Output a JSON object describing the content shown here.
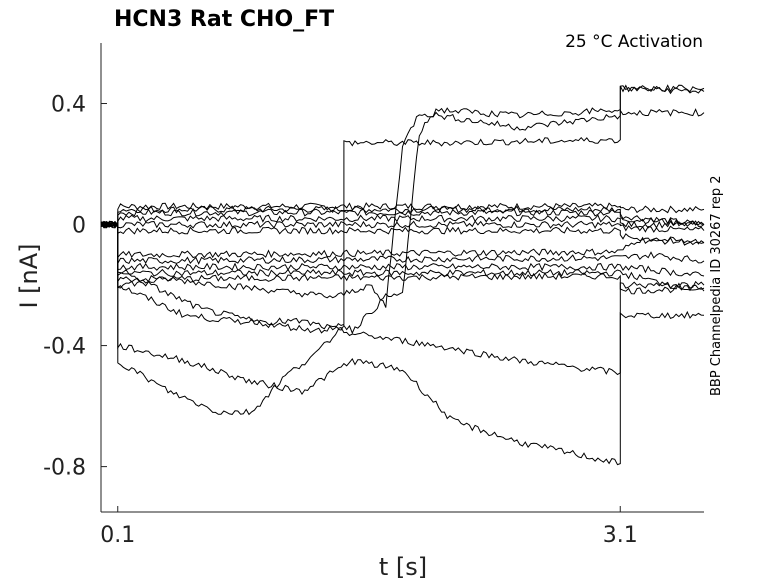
{
  "chart_data": {
    "type": "line",
    "title": "HCN3  Rat  CHO_FT",
    "annotation": "25 °C  Activation",
    "side_note": "BBP Channelpedia ID 30267 rep 2",
    "xlabel": "t [s]",
    "ylabel": "I [nA]",
    "xlim": [
      0.0,
      3.6
    ],
    "ylim": [
      -0.95,
      0.6
    ],
    "xticks": [
      {
        "value": 0.1,
        "label": "0.1"
      },
      {
        "value": 3.1,
        "label": "3.1"
      }
    ],
    "yticks": [
      {
        "value": 0.4,
        "label": "0.4"
      },
      {
        "value": 0.0,
        "label": "0"
      },
      {
        "value": -0.4,
        "label": "-0.4"
      },
      {
        "value": -0.8,
        "label": "-0.8"
      }
    ],
    "grid": false,
    "line_color": "#000000",
    "series": [
      {
        "values": [
          [
            0.0,
            0
          ],
          [
            0.1,
            0
          ],
          [
            0.1,
            0.06
          ],
          [
            3.1,
            0.06
          ],
          [
            3.1,
            0.05
          ],
          [
            3.6,
            0.05
          ]
        ]
      },
      {
        "values": [
          [
            0.0,
            0
          ],
          [
            0.1,
            0
          ],
          [
            0.1,
            0.05
          ],
          [
            3.1,
            0.05
          ],
          [
            3.1,
            0.03
          ],
          [
            3.6,
            0.0
          ]
        ]
      },
      {
        "values": [
          [
            0.0,
            0
          ],
          [
            0.1,
            0
          ],
          [
            0.1,
            0.04
          ],
          [
            3.1,
            0.04
          ],
          [
            3.1,
            0.02
          ],
          [
            3.6,
            0.0
          ]
        ]
      },
      {
        "values": [
          [
            0.0,
            0
          ],
          [
            0.1,
            0
          ],
          [
            0.1,
            0.02
          ],
          [
            3.1,
            0.02
          ],
          [
            3.1,
            0.0
          ],
          [
            3.6,
            0.0
          ]
        ]
      },
      {
        "values": [
          [
            0.0,
            0
          ],
          [
            0.1,
            0
          ],
          [
            0.1,
            0.0
          ],
          [
            3.1,
            0.0
          ],
          [
            3.1,
            -0.01
          ],
          [
            3.6,
            -0.02
          ]
        ]
      },
      {
        "values": [
          [
            0.0,
            0
          ],
          [
            0.1,
            0
          ],
          [
            0.1,
            -0.02
          ],
          [
            3.1,
            -0.02
          ],
          [
            3.1,
            -0.04
          ],
          [
            3.6,
            -0.06
          ]
        ]
      },
      {
        "values": [
          [
            0.0,
            0
          ],
          [
            0.1,
            0
          ],
          [
            0.1,
            -0.1
          ],
          [
            3.1,
            -0.09
          ],
          [
            3.2,
            -0.05
          ],
          [
            3.6,
            -0.06
          ]
        ]
      },
      {
        "values": [
          [
            0.0,
            0
          ],
          [
            0.1,
            0
          ],
          [
            0.1,
            -0.12
          ],
          [
            3.1,
            -0.11
          ],
          [
            3.3,
            -0.1
          ],
          [
            3.6,
            -0.12
          ]
        ]
      },
      {
        "values": [
          [
            0.0,
            0
          ],
          [
            0.1,
            0
          ],
          [
            0.1,
            -0.14
          ],
          [
            3.1,
            -0.14
          ],
          [
            3.3,
            -0.15
          ],
          [
            3.6,
            -0.17
          ]
        ]
      },
      {
        "values": [
          [
            0.0,
            0
          ],
          [
            0.1,
            0
          ],
          [
            0.1,
            -0.16
          ],
          [
            3.1,
            -0.16
          ],
          [
            3.4,
            -0.2
          ],
          [
            3.6,
            -0.22
          ]
        ]
      },
      {
        "values": [
          [
            0.0,
            0
          ],
          [
            0.1,
            0
          ],
          [
            0.1,
            -0.18
          ],
          [
            3.1,
            -0.17
          ],
          [
            3.1,
            -0.22
          ],
          [
            3.6,
            -0.21
          ]
        ]
      },
      {
        "values": [
          [
            0.0,
            0
          ],
          [
            0.1,
            0
          ],
          [
            0.1,
            -0.2
          ],
          [
            0.4,
            -0.18
          ],
          [
            1.4,
            -0.24
          ],
          [
            1.6,
            -0.2
          ],
          [
            1.7,
            -0.27
          ],
          [
            1.8,
            0.26
          ],
          [
            1.9,
            0.37
          ],
          [
            2.5,
            0.32
          ],
          [
            3.1,
            0.36
          ],
          [
            3.1,
            0.45
          ],
          [
            3.6,
            0.44
          ]
        ]
      },
      {
        "values": [
          [
            0.0,
            0
          ],
          [
            0.1,
            0
          ],
          [
            0.1,
            -0.15
          ],
          [
            0.6,
            -0.28
          ],
          [
            1.0,
            -0.33
          ],
          [
            1.3,
            -0.35
          ],
          [
            1.45,
            -0.33
          ],
          [
            1.45,
            0.27
          ],
          [
            2.0,
            0.27
          ],
          [
            3.1,
            0.28
          ],
          [
            3.1,
            0.37
          ],
          [
            3.6,
            0.37
          ]
        ]
      },
      {
        "values": [
          [
            0.0,
            0
          ],
          [
            0.1,
            0
          ],
          [
            0.1,
            -0.2
          ],
          [
            0.5,
            -0.3
          ],
          [
            0.8,
            -0.32
          ],
          [
            1.2,
            -0.32
          ],
          [
            1.5,
            -0.36
          ],
          [
            2.0,
            -0.4
          ],
          [
            2.5,
            -0.45
          ],
          [
            3.1,
            -0.49
          ],
          [
            3.1,
            -0.3
          ],
          [
            3.6,
            -0.3
          ]
        ]
      },
      {
        "values": [
          [
            0.0,
            0
          ],
          [
            0.1,
            0
          ],
          [
            0.1,
            -0.4
          ],
          [
            0.5,
            -0.45
          ],
          [
            0.9,
            -0.52
          ],
          [
            1.2,
            -0.55
          ],
          [
            1.5,
            -0.45
          ],
          [
            1.8,
            -0.48
          ],
          [
            2.1,
            -0.65
          ],
          [
            2.5,
            -0.72
          ],
          [
            3.1,
            -0.79
          ],
          [
            3.1,
            -0.2
          ],
          [
            3.6,
            -0.2
          ]
        ]
      },
      {
        "values": [
          [
            0.0,
            0
          ],
          [
            0.1,
            0
          ],
          [
            0.1,
            -0.45
          ],
          [
            0.4,
            -0.55
          ],
          [
            0.7,
            -0.62
          ],
          [
            0.9,
            -0.62
          ],
          [
            1.1,
            -0.5
          ],
          [
            1.3,
            -0.42
          ],
          [
            1.45,
            -0.33
          ],
          [
            1.5,
            -0.35
          ],
          [
            1.7,
            -0.24
          ],
          [
            1.8,
            -0.23
          ],
          [
            1.9,
            0.3
          ],
          [
            2.0,
            0.38
          ],
          [
            2.5,
            0.36
          ],
          [
            3.1,
            0.38
          ],
          [
            3.1,
            0.45
          ],
          [
            3.6,
            0.45
          ]
        ]
      }
    ]
  }
}
